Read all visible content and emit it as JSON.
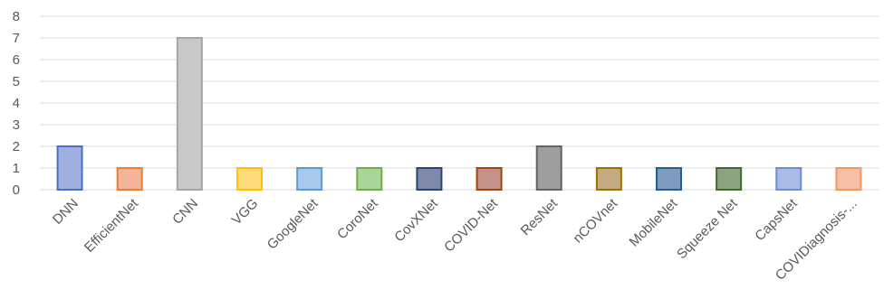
{
  "chart_data": {
    "type": "bar",
    "title": "",
    "xlabel": "",
    "ylabel": "",
    "ylim": [
      0,
      8
    ],
    "yticks": [
      "0",
      "1",
      "2",
      "3",
      "4",
      "5",
      "6",
      "7",
      "8"
    ],
    "grid": true,
    "legend": "none",
    "categories": [
      "DNN",
      "EfficientNet",
      "CNN",
      "VGG",
      "GoogleNet",
      "CoroNet",
      "CovXNet",
      "COVID-Net",
      "ResNet",
      "nCOVnet",
      "MobileNet",
      "Squeeze Net",
      "CapsNet",
      "COVIDiagnosis-..."
    ],
    "values": [
      2,
      1,
      7,
      1,
      1,
      1,
      1,
      1,
      2,
      1,
      1,
      1,
      1,
      1
    ],
    "fill_colors": [
      "#9fb0e0",
      "#f4b49a",
      "#c8c8c8",
      "#ffd97a",
      "#a9c8ec",
      "#a9d49a",
      "#7e8aa8",
      "#c49088",
      "#9e9e9e",
      "#c4aa80",
      "#7e9abe",
      "#8aa480",
      "#a9bce8",
      "#f7c0a6"
    ],
    "stroke_colors": [
      "#4472c4",
      "#ed7d31",
      "#a5a5a5",
      "#ffc000",
      "#5b9bd5",
      "#70ad47",
      "#264478",
      "#9e480e",
      "#636363",
      "#997300",
      "#255e91",
      "#43682b",
      "#698ed0",
      "#f1975a"
    ]
  }
}
